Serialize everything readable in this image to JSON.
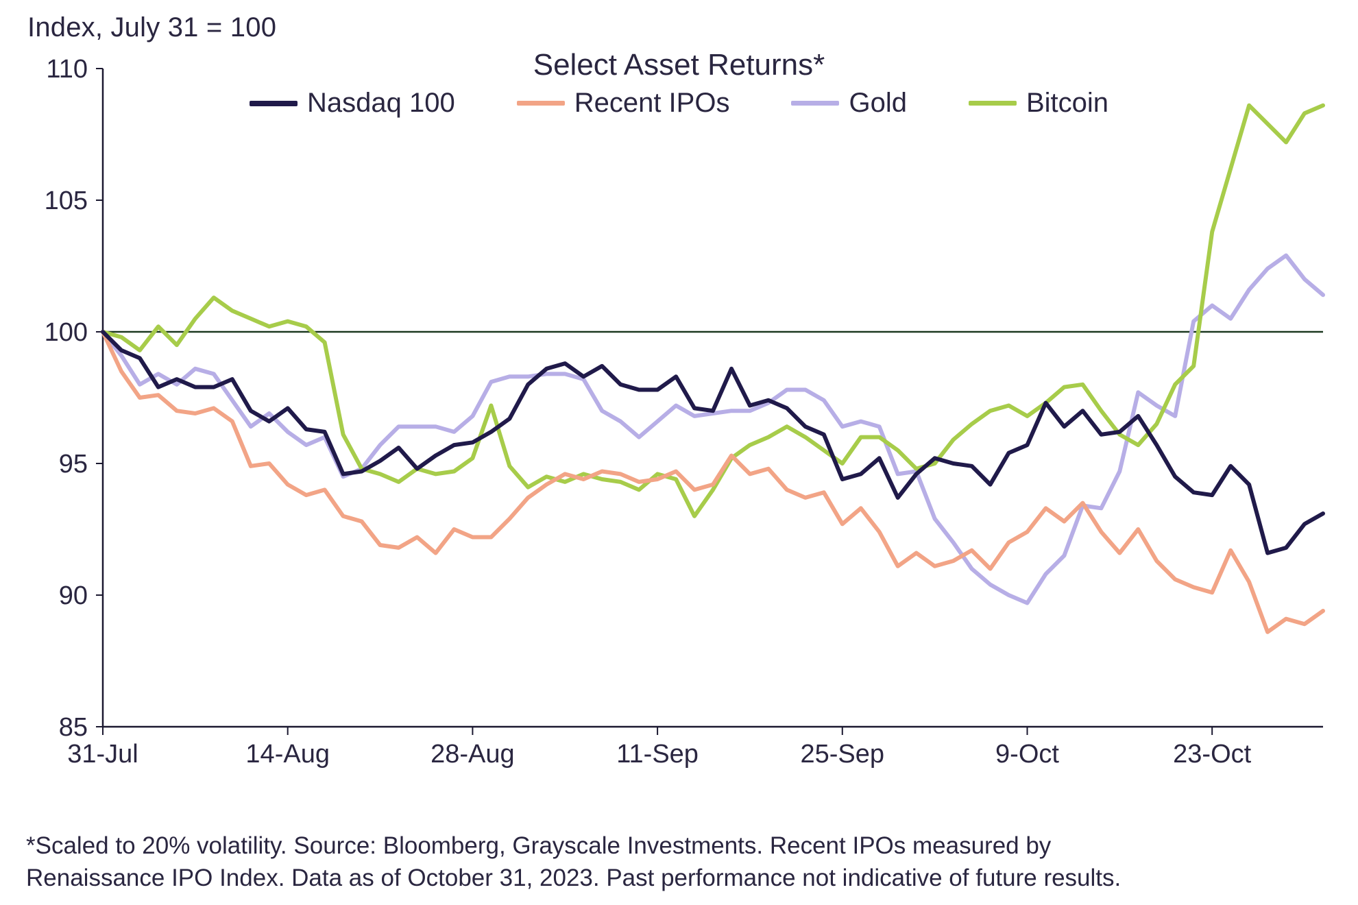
{
  "subtitle": "Index, July 31 = 100",
  "title": "Select Asset Returns*",
  "footnote_line1": "*Scaled to 20% volatility. Source: Bloomberg, Grayscale Investments. Recent IPOs measured by",
  "footnote_line2": "Renaissance IPO Index. Data as of October 31, 2023. Past performance not indicative of future results.",
  "text_color": "#2a2640",
  "bg_color": "#ffffff",
  "title_fontsize": 44,
  "subtitle_fontsize": 40,
  "legend_fontsize": 40,
  "tick_fontsize": 38,
  "footnote_fontsize": 35,
  "chart": {
    "type": "line",
    "y": {
      "min": 85,
      "max": 110,
      "ticks": [
        85,
        90,
        95,
        100,
        105,
        110
      ]
    },
    "x": {
      "min": 0,
      "max": 66,
      "tick_positions": [
        0,
        10,
        20,
        30,
        40,
        50,
        60
      ],
      "tick_labels": [
        "31-Jul",
        "14-Aug",
        "28-Aug",
        "11-Sep",
        "25-Sep",
        "9-Oct",
        "23-Oct"
      ]
    },
    "reference_line": {
      "y": 100,
      "color": "#1b3820",
      "width": 2.5
    },
    "axis_color": "#1b1830",
    "line_width": 6,
    "series": [
      {
        "name": "Nasdaq 100",
        "color": "#201a4a",
        "values": [
          100.0,
          99.3,
          99.0,
          97.9,
          98.2,
          97.9,
          97.9,
          98.2,
          97.0,
          96.6,
          97.1,
          96.3,
          96.2,
          94.6,
          94.7,
          95.1,
          95.6,
          94.8,
          95.3,
          95.7,
          95.8,
          96.2,
          96.7,
          98.0,
          98.6,
          98.8,
          98.3,
          98.7,
          98.0,
          97.8,
          97.8,
          98.3,
          97.1,
          97.0,
          98.6,
          97.2,
          97.4,
          97.1,
          96.4,
          96.1,
          94.4,
          94.6,
          95.2,
          93.7,
          94.6,
          95.2,
          95.0,
          94.9,
          94.2,
          95.4,
          95.7,
          97.3,
          96.4,
          97.0,
          96.1,
          96.2,
          96.8,
          95.7,
          94.5,
          93.9,
          93.8,
          94.9,
          94.2,
          91.6,
          91.8,
          92.7,
          93.1
        ]
      },
      {
        "name": "Recent IPOs",
        "color": "#f2a486",
        "values": [
          100.0,
          98.5,
          97.5,
          97.6,
          97.0,
          96.9,
          97.1,
          96.6,
          94.9,
          95.0,
          94.2,
          93.8,
          94.0,
          93.0,
          92.8,
          91.9,
          91.8,
          92.2,
          91.6,
          92.5,
          92.2,
          92.2,
          92.9,
          93.7,
          94.2,
          94.6,
          94.4,
          94.7,
          94.6,
          94.3,
          94.4,
          94.7,
          94.0,
          94.2,
          95.3,
          94.6,
          94.8,
          94.0,
          93.7,
          93.9,
          92.7,
          93.3,
          92.4,
          91.1,
          91.6,
          91.1,
          91.3,
          91.7,
          91.0,
          92.0,
          92.4,
          93.3,
          92.8,
          93.5,
          92.4,
          91.6,
          92.5,
          91.3,
          90.6,
          90.3,
          90.1,
          91.7,
          90.5,
          88.6,
          89.1,
          88.9,
          89.4
        ]
      },
      {
        "name": "Gold",
        "color": "#b7aee6",
        "values": [
          100.0,
          99.1,
          98.0,
          98.4,
          98.0,
          98.6,
          98.4,
          97.4,
          96.4,
          96.9,
          96.2,
          95.7,
          96.0,
          94.5,
          94.8,
          95.7,
          96.4,
          96.4,
          96.4,
          96.2,
          96.8,
          98.1,
          98.3,
          98.3,
          98.4,
          98.4,
          98.2,
          97.0,
          96.6,
          96.0,
          96.6,
          97.2,
          96.8,
          96.9,
          97.0,
          97.0,
          97.3,
          97.8,
          97.8,
          97.4,
          96.4,
          96.6,
          96.4,
          94.6,
          94.7,
          92.9,
          92.0,
          91.0,
          90.4,
          90.0,
          89.7,
          90.8,
          91.5,
          93.4,
          93.3,
          94.7,
          97.7,
          97.2,
          96.8,
          100.4,
          101.0,
          100.5,
          101.6,
          102.4,
          102.9,
          102.0,
          101.4
        ]
      },
      {
        "name": "Bitcoin",
        "color": "#a7cc4a",
        "values": [
          100.0,
          99.8,
          99.3,
          100.2,
          99.5,
          100.5,
          101.3,
          100.8,
          100.5,
          100.2,
          100.4,
          100.2,
          99.6,
          96.1,
          94.8,
          94.6,
          94.3,
          94.8,
          94.6,
          94.7,
          95.2,
          97.2,
          94.9,
          94.1,
          94.5,
          94.3,
          94.6,
          94.4,
          94.3,
          94.0,
          94.6,
          94.4,
          93.0,
          94.0,
          95.2,
          95.7,
          96.0,
          96.4,
          96.0,
          95.5,
          95.0,
          96.0,
          96.0,
          95.5,
          94.8,
          95.0,
          95.9,
          96.5,
          97.0,
          97.2,
          96.8,
          97.3,
          97.9,
          98.0,
          97.0,
          96.1,
          95.7,
          96.5,
          98.0,
          98.7,
          103.8,
          106.2,
          108.6,
          107.9,
          107.2,
          108.3,
          108.6
        ]
      }
    ]
  }
}
